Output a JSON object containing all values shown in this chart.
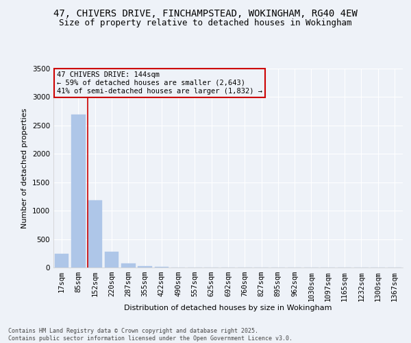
{
  "title_line1": "47, CHIVERS DRIVE, FINCHAMPSTEAD, WOKINGHAM, RG40 4EW",
  "title_line2": "Size of property relative to detached houses in Wokingham",
  "xlabel": "Distribution of detached houses by size in Wokingham",
  "ylabel": "Number of detached properties",
  "bar_color": "#aec6e8",
  "bar_edge_color": "#aec6e8",
  "categories": [
    "17sqm",
    "85sqm",
    "152sqm",
    "220sqm",
    "287sqm",
    "355sqm",
    "422sqm",
    "490sqm",
    "557sqm",
    "625sqm",
    "692sqm",
    "760sqm",
    "827sqm",
    "895sqm",
    "962sqm",
    "1030sqm",
    "1097sqm",
    "1165sqm",
    "1232sqm",
    "1300sqm",
    "1367sqm"
  ],
  "values": [
    240,
    2690,
    1185,
    275,
    75,
    30,
    15,
    5,
    0,
    0,
    0,
    0,
    0,
    0,
    0,
    0,
    0,
    0,
    0,
    0,
    0
  ],
  "ylim": [
    0,
    3500
  ],
  "yticks": [
    0,
    500,
    1000,
    1500,
    2000,
    2500,
    3000,
    3500
  ],
  "vline_color": "#cc0000",
  "annotation_title": "47 CHIVERS DRIVE: 144sqm",
  "annotation_line1": "← 59% of detached houses are smaller (2,643)",
  "annotation_line2": "41% of semi-detached houses are larger (1,832) →",
  "annotation_box_color": "#cc0000",
  "background_color": "#eef2f8",
  "grid_color": "#ffffff",
  "footnote_line1": "Contains HM Land Registry data © Crown copyright and database right 2025.",
  "footnote_line2": "Contains public sector information licensed under the Open Government Licence v3.0.",
  "title_fontsize": 10,
  "subtitle_fontsize": 9,
  "axis_label_fontsize": 8,
  "tick_fontsize": 7.5,
  "annot_fontsize": 7.5
}
